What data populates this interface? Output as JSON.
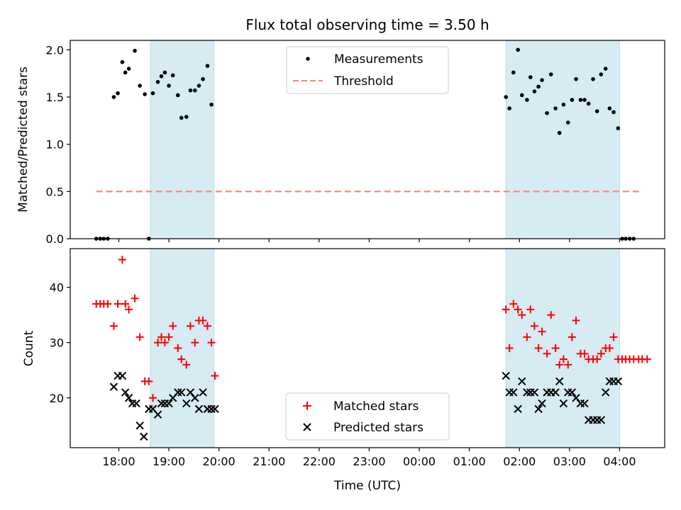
{
  "chart_data": [
    {
      "type": "scatter",
      "title": "Flux total observing time = 3.50 h",
      "xlabel": "",
      "ylabel": "Matched/Predicted stars",
      "xlim": [
        -0.97,
        10.9
      ],
      "ylim": [
        0,
        2.1
      ],
      "yticks": [
        0.0,
        0.5,
        1.0,
        1.5,
        2.0
      ],
      "grid": false,
      "legend": "upper center",
      "shaded_intervals": [
        [
          0.63,
          1.9
        ],
        [
          7.73,
          10.0
        ]
      ],
      "colors": {
        "measurements": "#000000",
        "threshold": "#ff8080",
        "shade": "#add8e6"
      },
      "series": [
        {
          "name": "Measurements",
          "kind": "scatter",
          "x": [
            -0.45,
            -0.37,
            -0.3,
            -0.22,
            -0.1,
            -0.02,
            0.07,
            0.13,
            0.2,
            0.32,
            0.42,
            0.52,
            0.6,
            0.68,
            0.78,
            0.85,
            0.92,
            1.0,
            1.08,
            1.18,
            1.25,
            1.35,
            1.43,
            1.52,
            1.6,
            1.68,
            1.77,
            1.85,
            7.73,
            7.8,
            7.88,
            7.97,
            8.05,
            8.15,
            8.22,
            8.3,
            8.38,
            8.45,
            8.55,
            8.63,
            8.72,
            8.8,
            8.88,
            8.97,
            9.05,
            9.13,
            9.22,
            9.3,
            9.38,
            9.47,
            9.55,
            9.63,
            9.72,
            9.8,
            9.88,
            9.97,
            10.05,
            10.12,
            10.2,
            10.28
          ],
          "y": [
            0,
            0,
            0,
            0,
            1.5,
            1.54,
            1.87,
            1.76,
            1.8,
            1.99,
            1.62,
            1.53,
            0,
            1.54,
            1.66,
            1.72,
            1.76,
            1.62,
            1.73,
            1.52,
            1.28,
            1.29,
            1.57,
            1.57,
            1.62,
            1.69,
            1.83,
            1.42,
            1.5,
            1.38,
            1.76,
            2.0,
            1.52,
            1.47,
            1.71,
            1.56,
            1.61,
            1.68,
            1.33,
            1.74,
            1.38,
            1.12,
            1.42,
            1.23,
            1.47,
            1.69,
            1.47,
            1.47,
            1.43,
            1.69,
            1.35,
            1.74,
            1.8,
            1.38,
            1.34,
            1.17,
            0,
            0,
            0,
            0
          ]
        },
        {
          "name": "Threshold",
          "kind": "line",
          "x": [
            -0.45,
            10.4
          ],
          "y": [
            0.5,
            0.5
          ]
        }
      ]
    },
    {
      "type": "scatter",
      "title": "",
      "xlabel": "Time (UTC)",
      "ylabel": "Count",
      "xlim": [
        -0.97,
        10.9
      ],
      "ylim": [
        11,
        47
      ],
      "yticks": [
        20,
        30,
        40
      ],
      "xticks": [
        0,
        1,
        2,
        3,
        4,
        5,
        6,
        7,
        8,
        9,
        10
      ],
      "xtick_labels": [
        "18:00",
        "19:00",
        "20:00",
        "21:00",
        "22:00",
        "23:00",
        "00:00",
        "01:00",
        "02:00",
        "03:00",
        "04:00"
      ],
      "grid": false,
      "legend": "lower center",
      "shaded_intervals": [
        [
          0.63,
          1.9
        ],
        [
          7.73,
          10.0
        ]
      ],
      "colors": {
        "matched": "#ff0000",
        "predicted": "#000000",
        "shade": "#add8e6"
      },
      "series": [
        {
          "name": "Matched stars",
          "marker": "plus",
          "x": [
            -0.45,
            -0.37,
            -0.3,
            -0.22,
            -0.1,
            -0.02,
            0.07,
            0.13,
            0.2,
            0.32,
            0.42,
            0.52,
            0.6,
            0.68,
            0.78,
            0.85,
            0.92,
            1.0,
            1.08,
            1.18,
            1.25,
            1.35,
            1.43,
            1.52,
            1.6,
            1.68,
            1.77,
            1.85,
            1.92,
            7.73,
            7.8,
            7.88,
            7.97,
            8.05,
            8.15,
            8.22,
            8.3,
            8.38,
            8.45,
            8.55,
            8.63,
            8.72,
            8.8,
            8.88,
            8.97,
            9.05,
            9.13,
            9.22,
            9.3,
            9.38,
            9.47,
            9.55,
            9.63,
            9.72,
            9.8,
            9.88,
            9.97,
            10.05,
            10.12,
            10.2,
            10.28,
            10.38,
            10.45,
            10.55
          ],
          "y": [
            37,
            37,
            37,
            37,
            33,
            37,
            45,
            37,
            36,
            38,
            31,
            23,
            23,
            20,
            30,
            31,
            30,
            31,
            33,
            29,
            27,
            26,
            33,
            30,
            34,
            34,
            33,
            30,
            24,
            36,
            29,
            37,
            36,
            35,
            31,
            36,
            33,
            29,
            32,
            28,
            35,
            29,
            26,
            27,
            26,
            31,
            34,
            28,
            28,
            27,
            27,
            27,
            28,
            29,
            29,
            31,
            27,
            27,
            27,
            27,
            27,
            27,
            27,
            27
          ]
        },
        {
          "name": "Predicted stars",
          "marker": "x",
          "x": [
            -0.1,
            -0.02,
            0.07,
            0.13,
            0.2,
            0.27,
            0.35,
            0.42,
            0.5,
            0.6,
            0.68,
            0.78,
            0.85,
            0.92,
            1.0,
            1.08,
            1.18,
            1.25,
            1.35,
            1.43,
            1.52,
            1.6,
            1.68,
            1.77,
            1.85,
            1.92,
            7.73,
            7.8,
            7.88,
            7.97,
            8.05,
            8.15,
            8.22,
            8.3,
            8.38,
            8.45,
            8.55,
            8.63,
            8.72,
            8.8,
            8.88,
            8.97,
            9.05,
            9.13,
            9.22,
            9.3,
            9.38,
            9.47,
            9.55,
            9.63,
            9.72,
            9.8,
            9.88,
            9.97
          ],
          "y": [
            22,
            24,
            24,
            21,
            20,
            19,
            19,
            15,
            13,
            18,
            18,
            17,
            19,
            19,
            19,
            20,
            21,
            21,
            19,
            21,
            20,
            18,
            21,
            18,
            18,
            18,
            24,
            21,
            21,
            18,
            23,
            21,
            21,
            21,
            18,
            19,
            21,
            21,
            21,
            23,
            19,
            21,
            21,
            20,
            19,
            19,
            16,
            16,
            16,
            16,
            21,
            23,
            23,
            23
          ]
        }
      ]
    }
  ]
}
